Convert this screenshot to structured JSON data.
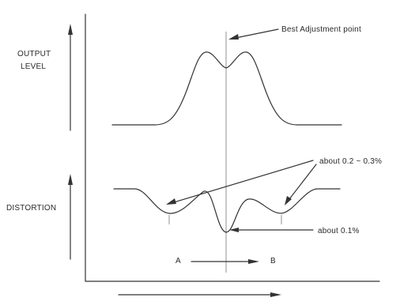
{
  "labels": {
    "output_level_line1": "OUTPUT",
    "output_level_line2": "LEVEL",
    "distortion": "DISTORTION",
    "best_adjustment": "Best Adjustment point",
    "distortion_high": "about  0.2 ~ 0.3%",
    "distortion_low": "about  0.1%",
    "point_a": "A",
    "point_b": "B"
  },
  "colors": {
    "ink": "#333333",
    "background": "#ffffff"
  }
}
